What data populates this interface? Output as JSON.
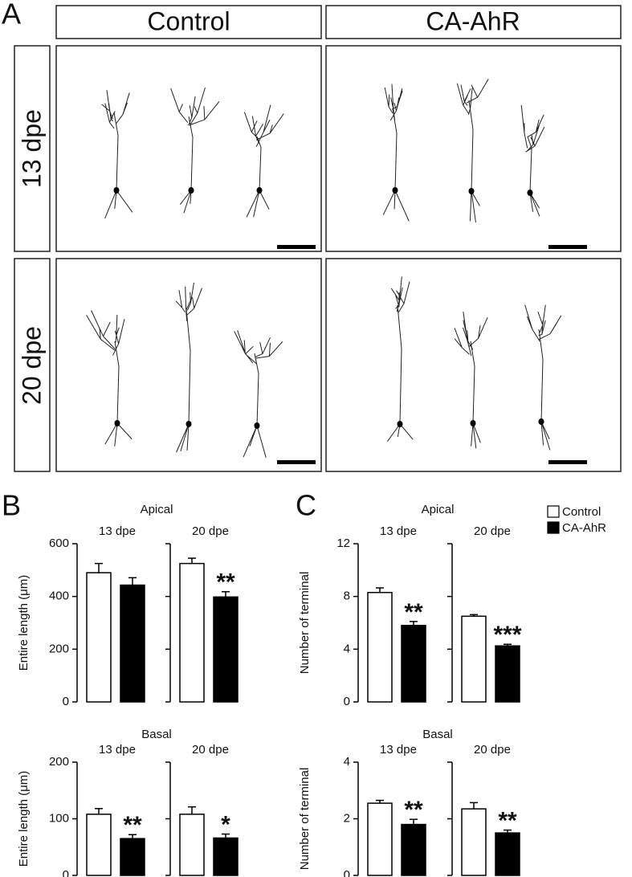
{
  "panel_a": {
    "label": "A",
    "columns": [
      "Control",
      "CA-AhR"
    ],
    "rows": [
      "13 dpe",
      "20 dpe"
    ]
  },
  "panel_b_label": "B",
  "panel_c_label": "C",
  "section_titles": [
    "Apical",
    "Apical",
    "Basal",
    "Basal"
  ],
  "legend": [
    {
      "name": "Control",
      "color": "#ffffff"
    },
    {
      "name": "CA-AhR",
      "color": "#000000"
    }
  ],
  "chart_data": [
    {
      "type": "bar",
      "subtitle": "13 dpe",
      "ylabel": "Entire length (μm)",
      "values": [
        490,
        443
      ],
      "errors": [
        35,
        28
      ],
      "annotations": [
        null,
        null
      ],
      "ylim": [
        0,
        600
      ],
      "yticks": [
        0,
        200,
        400,
        600
      ],
      "show_tick_labels": true
    },
    {
      "type": "bar",
      "subtitle": "20 dpe",
      "values": [
        525,
        398
      ],
      "errors": [
        20,
        20
      ],
      "annotations": [
        null,
        "**"
      ],
      "ylim": [
        0,
        600
      ],
      "yticks": [
        0,
        200,
        400,
        600
      ],
      "show_tick_labels": false
    },
    {
      "type": "bar",
      "subtitle": "13 dpe",
      "ylabel": "Number of terminal",
      "values": [
        8.3,
        5.8
      ],
      "errors": [
        0.35,
        0.3
      ],
      "annotations": [
        null,
        "**"
      ],
      "ylim": [
        0,
        12
      ],
      "yticks": [
        0,
        4,
        8,
        12
      ],
      "show_tick_labels": true
    },
    {
      "type": "bar",
      "subtitle": "20 dpe",
      "values": [
        6.5,
        4.25
      ],
      "errors": [
        0.12,
        0.12
      ],
      "annotations": [
        null,
        "***"
      ],
      "ylim": [
        0,
        12
      ],
      "yticks": [
        0,
        4,
        8,
        12
      ],
      "show_tick_labels": false
    },
    {
      "type": "bar",
      "subtitle": "13 dpe",
      "ylabel": "Entire length (μm)",
      "values": [
        108,
        65
      ],
      "errors": [
        10,
        7
      ],
      "annotations": [
        null,
        "**"
      ],
      "ylim": [
        0,
        200
      ],
      "yticks": [
        0,
        100,
        200
      ],
      "show_tick_labels": true
    },
    {
      "type": "bar",
      "subtitle": "20 dpe",
      "values": [
        108,
        66
      ],
      "errors": [
        13,
        7
      ],
      "annotations": [
        null,
        "*"
      ],
      "ylim": [
        0,
        200
      ],
      "yticks": [
        0,
        100,
        200
      ],
      "show_tick_labels": false
    },
    {
      "type": "bar",
      "subtitle": "13 dpe",
      "ylabel": "Number of terminal",
      "values": [
        2.55,
        1.8
      ],
      "errors": [
        0.1,
        0.18
      ],
      "annotations": [
        null,
        "**"
      ],
      "ylim": [
        0,
        4
      ],
      "yticks": [
        0,
        2,
        4
      ],
      "show_tick_labels": true
    },
    {
      "type": "bar",
      "subtitle": "20 dpe",
      "values": [
        2.35,
        1.5
      ],
      "errors": [
        0.22,
        0.1
      ],
      "annotations": [
        null,
        "**"
      ],
      "ylim": [
        0,
        4
      ],
      "yticks": [
        0,
        2,
        4
      ],
      "show_tick_labels": false
    }
  ]
}
